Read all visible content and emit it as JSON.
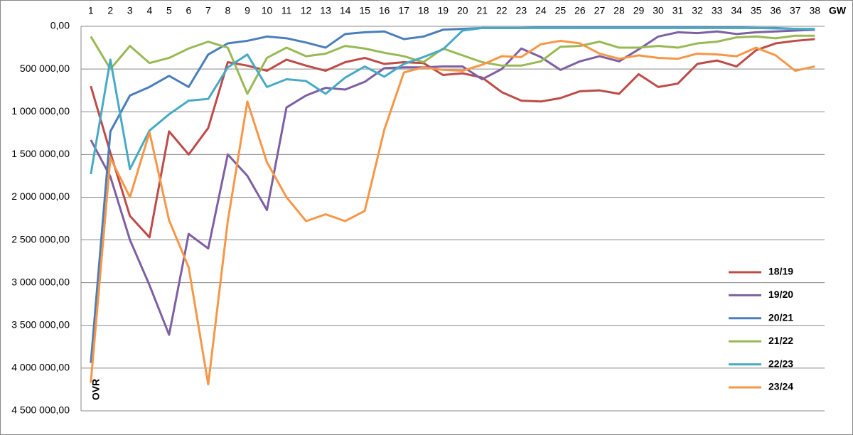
{
  "chart_data": {
    "type": "line",
    "x_label": "GW",
    "annotation": "OVR",
    "categories": [
      1,
      2,
      3,
      4,
      5,
      6,
      7,
      8,
      9,
      10,
      11,
      12,
      13,
      14,
      15,
      16,
      17,
      18,
      19,
      20,
      21,
      22,
      23,
      24,
      25,
      26,
      27,
      28,
      29,
      30,
      31,
      32,
      33,
      34,
      35,
      36,
      37,
      38
    ],
    "ylim": [
      0,
      4500000
    ],
    "y_inverted": true,
    "grid": true,
    "legend": "right",
    "yticks": [
      {
        "value": 0,
        "label": "0,00"
      },
      {
        "value": 500000,
        "label": "500 000,00"
      },
      {
        "value": 1000000,
        "label": "1 000 000,00"
      },
      {
        "value": 1500000,
        "label": "1 500 000,00"
      },
      {
        "value": 2000000,
        "label": "2 000 000,00"
      },
      {
        "value": 2500000,
        "label": "2 500 000,00"
      },
      {
        "value": 3000000,
        "label": "3 000 000,00"
      },
      {
        "value": 3500000,
        "label": "3 500 000,00"
      },
      {
        "value": 4000000,
        "label": "4 000 000,00"
      },
      {
        "value": 4500000,
        "label": "4 500 000,00"
      }
    ],
    "series": [
      {
        "name": "18/19",
        "color": "#be4b48",
        "values": [
          700000,
          1480000,
          2220000,
          2470000,
          1230000,
          1500000,
          1190000,
          420000,
          460000,
          520000,
          390000,
          460000,
          520000,
          420000,
          370000,
          440000,
          420000,
          430000,
          570000,
          550000,
          600000,
          770000,
          870000,
          880000,
          840000,
          760000,
          750000,
          790000,
          560000,
          710000,
          670000,
          440000,
          400000,
          470000,
          280000,
          200000,
          170000,
          150000
        ]
      },
      {
        "name": "19/20",
        "color": "#7e5fa1",
        "values": [
          1330000,
          1760000,
          2500000,
          3030000,
          3610000,
          2430000,
          2600000,
          1500000,
          1750000,
          2150000,
          950000,
          810000,
          720000,
          740000,
          650000,
          490000,
          480000,
          480000,
          470000,
          470000,
          620000,
          500000,
          260000,
          360000,
          510000,
          410000,
          350000,
          410000,
          270000,
          120000,
          70000,
          80000,
          60000,
          90000,
          70000,
          60000,
          50000,
          40000
        ]
      },
      {
        "name": "20/21",
        "color": "#4a7ebb",
        "values": [
          3940000,
          1230000,
          810000,
          710000,
          580000,
          710000,
          330000,
          200000,
          170000,
          120000,
          140000,
          190000,
          250000,
          90000,
          70000,
          60000,
          150000,
          120000,
          40000,
          30000,
          20000,
          20000,
          20000,
          15000,
          15000,
          15000,
          15000,
          15000,
          15000,
          15000,
          15000,
          15000,
          15000,
          15000,
          20000,
          20000,
          30000,
          40000
        ]
      },
      {
        "name": "21/22",
        "color": "#98b954",
        "values": [
          120000,
          500000,
          230000,
          430000,
          370000,
          260000,
          180000,
          250000,
          790000,
          370000,
          250000,
          350000,
          320000,
          230000,
          260000,
          310000,
          350000,
          420000,
          260000,
          340000,
          420000,
          460000,
          460000,
          410000,
          240000,
          230000,
          180000,
          250000,
          250000,
          230000,
          250000,
          200000,
          180000,
          130000,
          120000,
          140000,
          110000,
          110000
        ]
      },
      {
        "name": "22/23",
        "color": "#46aac5",
        "values": [
          1730000,
          390000,
          1670000,
          1220000,
          1030000,
          870000,
          850000,
          480000,
          330000,
          710000,
          620000,
          640000,
          790000,
          600000,
          470000,
          590000,
          440000,
          360000,
          270000,
          50000,
          20000,
          20000,
          20000,
          20000,
          20000,
          20000,
          20000,
          20000,
          20000,
          20000,
          20000,
          20000,
          20000,
          20000,
          20000,
          25000,
          30000,
          30000
        ]
      },
      {
        "name": "23/24",
        "color": "#f79646",
        "values": [
          4170000,
          1540000,
          2000000,
          1240000,
          2270000,
          2820000,
          4190000,
          2280000,
          880000,
          1590000,
          2000000,
          2280000,
          2200000,
          2280000,
          2160000,
          1210000,
          540000,
          480000,
          510000,
          520000,
          450000,
          350000,
          360000,
          210000,
          170000,
          200000,
          320000,
          380000,
          340000,
          370000,
          380000,
          320000,
          330000,
          350000,
          250000,
          340000,
          520000,
          470000
        ]
      }
    ]
  }
}
